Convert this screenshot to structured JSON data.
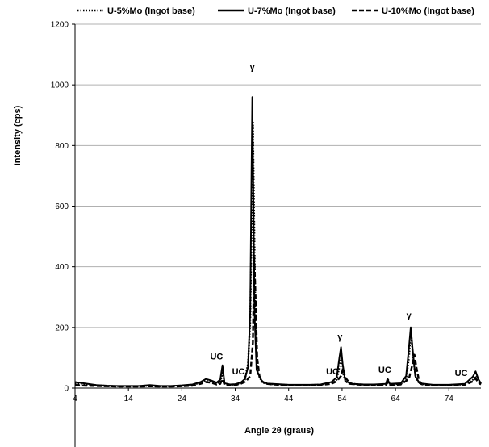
{
  "chart_data": {
    "type": "line",
    "title": "",
    "xlabel": "Angle 2θ (graus)",
    "ylabel": "Intensity (cps)",
    "xlim": [
      4,
      80
    ],
    "ylim": [
      -200,
      1200
    ],
    "grid": "horizontal",
    "legend_position": "top",
    "x_ticks": [
      4,
      14,
      24,
      34,
      44,
      54,
      64,
      74
    ],
    "y_ticks": [
      0,
      200,
      400,
      600,
      800,
      1000,
      1200
    ],
    "y_tick_labels": [
      "0",
      "200",
      "400",
      "600",
      "800",
      "1000",
      "1200"
    ],
    "series": [
      {
        "name": "U-5%Mo  (Ingot base)",
        "style": "dotted",
        "points": [
          [
            4,
            14
          ],
          [
            6,
            11
          ],
          [
            8,
            9
          ],
          [
            10,
            7
          ],
          [
            12,
            6
          ],
          [
            14,
            6
          ],
          [
            16,
            6
          ],
          [
            18,
            8
          ],
          [
            20,
            6
          ],
          [
            22,
            6
          ],
          [
            24,
            8
          ],
          [
            26,
            10
          ],
          [
            27.5,
            18
          ],
          [
            28.5,
            26
          ],
          [
            29.5,
            22
          ],
          [
            30.5,
            16
          ],
          [
            31.2,
            20
          ],
          [
            31.6,
            50
          ],
          [
            32,
            14
          ],
          [
            33,
            11
          ],
          [
            34,
            12
          ],
          [
            35,
            16
          ],
          [
            35.8,
            28
          ],
          [
            36.4,
            80
          ],
          [
            36.8,
            220
          ],
          [
            37.1,
            600
          ],
          [
            37.3,
            880
          ],
          [
            37.5,
            600
          ],
          [
            37.8,
            200
          ],
          [
            38.2,
            50
          ],
          [
            39,
            20
          ],
          [
            40,
            14
          ],
          [
            42,
            12
          ],
          [
            44,
            10
          ],
          [
            46,
            10
          ],
          [
            48,
            10
          ],
          [
            50,
            11
          ],
          [
            52,
            18
          ],
          [
            53,
            28
          ],
          [
            53.6,
            80
          ],
          [
            53.9,
            100
          ],
          [
            54.3,
            40
          ],
          [
            55,
            16
          ],
          [
            57,
            12
          ],
          [
            60,
            11
          ],
          [
            62.2,
            12
          ],
          [
            62.6,
            28
          ],
          [
            63,
            12
          ],
          [
            65,
            14
          ],
          [
            66,
            30
          ],
          [
            66.5,
            100
          ],
          [
            66.9,
            185
          ],
          [
            67.3,
            100
          ],
          [
            67.8,
            35
          ],
          [
            68.5,
            14
          ],
          [
            71,
            10
          ],
          [
            74,
            10
          ],
          [
            77,
            12
          ],
          [
            78.5,
            28
          ],
          [
            79,
            40
          ],
          [
            79.5,
            22
          ],
          [
            80,
            14
          ]
        ]
      },
      {
        "name": "U-7%Mo  (Ingot base)",
        "style": "solid",
        "points": [
          [
            4,
            20
          ],
          [
            6,
            15
          ],
          [
            8,
            10
          ],
          [
            10,
            8
          ],
          [
            12,
            7
          ],
          [
            14,
            7
          ],
          [
            16,
            7
          ],
          [
            18,
            10
          ],
          [
            20,
            7
          ],
          [
            22,
            7
          ],
          [
            24,
            9
          ],
          [
            26,
            12
          ],
          [
            27.5,
            20
          ],
          [
            28.5,
            30
          ],
          [
            29.5,
            25
          ],
          [
            30.5,
            18
          ],
          [
            31.2,
            28
          ],
          [
            31.6,
            75
          ],
          [
            32,
            16
          ],
          [
            33,
            12
          ],
          [
            34,
            13
          ],
          [
            35,
            18
          ],
          [
            35.8,
            30
          ],
          [
            36.4,
            70
          ],
          [
            36.8,
            250
          ],
          [
            37.05,
            700
          ],
          [
            37.2,
            960
          ],
          [
            37.35,
            700
          ],
          [
            37.6,
            250
          ],
          [
            38,
            60
          ],
          [
            39,
            22
          ],
          [
            40,
            15
          ],
          [
            42,
            13
          ],
          [
            44,
            11
          ],
          [
            46,
            11
          ],
          [
            48,
            11
          ],
          [
            50,
            12
          ],
          [
            52,
            20
          ],
          [
            53,
            35
          ],
          [
            53.5,
            100
          ],
          [
            53.8,
            135
          ],
          [
            54.1,
            80
          ],
          [
            54.6,
            22
          ],
          [
            56,
            14
          ],
          [
            58,
            12
          ],
          [
            60,
            12
          ],
          [
            62.2,
            14
          ],
          [
            62.5,
            30
          ],
          [
            62.9,
            14
          ],
          [
            65,
            16
          ],
          [
            66,
            40
          ],
          [
            66.5,
            130
          ],
          [
            66.85,
            200
          ],
          [
            67.2,
            130
          ],
          [
            67.7,
            40
          ],
          [
            68.5,
            16
          ],
          [
            71,
            11
          ],
          [
            74,
            11
          ],
          [
            77,
            14
          ],
          [
            78.5,
            38
          ],
          [
            79,
            55
          ],
          [
            79.5,
            30
          ],
          [
            80,
            16
          ]
        ]
      },
      {
        "name": "U-10%Mo  (Ingot base)",
        "style": "dashed",
        "points": [
          [
            4,
            10
          ],
          [
            6,
            8
          ],
          [
            8,
            7
          ],
          [
            10,
            6
          ],
          [
            12,
            5
          ],
          [
            14,
            5
          ],
          [
            16,
            5
          ],
          [
            18,
            6
          ],
          [
            20,
            5
          ],
          [
            22,
            5
          ],
          [
            24,
            6
          ],
          [
            26,
            8
          ],
          [
            27.5,
            14
          ],
          [
            28.5,
            20
          ],
          [
            29.5,
            18
          ],
          [
            30.5,
            12
          ],
          [
            31.2,
            14
          ],
          [
            31.6,
            30
          ],
          [
            32,
            10
          ],
          [
            33,
            9
          ],
          [
            34,
            10
          ],
          [
            35,
            14
          ],
          [
            36,
            22
          ],
          [
            36.8,
            40
          ],
          [
            37.3,
            150
          ],
          [
            37.55,
            430
          ],
          [
            37.8,
            300
          ],
          [
            38.1,
            100
          ],
          [
            38.6,
            30
          ],
          [
            39.5,
            15
          ],
          [
            41,
            12
          ],
          [
            44,
            9
          ],
          [
            46,
            9
          ],
          [
            48,
            9
          ],
          [
            50,
            10
          ],
          [
            52,
            14
          ],
          [
            53,
            22
          ],
          [
            53.8,
            40
          ],
          [
            54.2,
            65
          ],
          [
            54.6,
            35
          ],
          [
            55.5,
            14
          ],
          [
            58,
            10
          ],
          [
            60,
            10
          ],
          [
            62.2,
            10
          ],
          [
            62.6,
            20
          ],
          [
            63,
            10
          ],
          [
            65,
            12
          ],
          [
            66.5,
            30
          ],
          [
            67.2,
            80
          ],
          [
            67.55,
            110
          ],
          [
            67.9,
            70
          ],
          [
            68.4,
            25
          ],
          [
            69,
            12
          ],
          [
            71,
            9
          ],
          [
            74,
            9
          ],
          [
            77,
            11
          ],
          [
            78.5,
            22
          ],
          [
            79,
            32
          ],
          [
            79.5,
            18
          ],
          [
            80,
            12
          ]
        ]
      }
    ],
    "annotations": [
      {
        "text": "γ",
        "x": 37.2,
        "y": 1050
      },
      {
        "text": "UC",
        "x": 30.5,
        "y": 95
      },
      {
        "text": "UC",
        "x": 34.6,
        "y": 45
      },
      {
        "text": "γ",
        "x": 53.6,
        "y": 160
      },
      {
        "text": "UC",
        "x": 52.2,
        "y": 45
      },
      {
        "text": "UC",
        "x": 62,
        "y": 50
      },
      {
        "text": "γ",
        "x": 66.5,
        "y": 230
      },
      {
        "text": "UC",
        "x": 76.3,
        "y": 40
      }
    ]
  }
}
